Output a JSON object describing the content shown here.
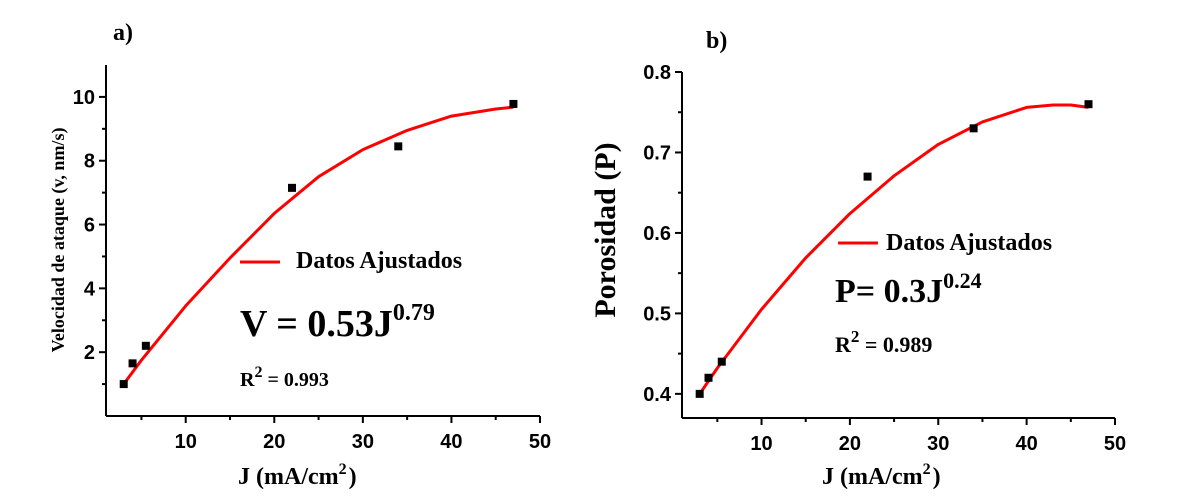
{
  "chart_data": [
    {
      "panel_label": "a)",
      "type": "scatter",
      "xlabel_main": "J (mA/cm",
      "xlabel_sup": "2",
      "xlabel_end": ")",
      "ylabel": "Velocidad de ataque (v, nm/s)",
      "xlim": [
        1,
        50
      ],
      "ylim": [
        0,
        11
      ],
      "xticks": [
        10,
        20,
        30,
        40,
        50
      ],
      "yticks": [
        2,
        4,
        6,
        8,
        10
      ],
      "tick_decimals": 0,
      "points": [
        {
          "x": 3,
          "y": 1.0
        },
        {
          "x": 4,
          "y": 1.65
        },
        {
          "x": 5.5,
          "y": 2.2
        },
        {
          "x": 22,
          "y": 7.15
        },
        {
          "x": 34,
          "y": 8.45
        },
        {
          "x": 47,
          "y": 9.78
        }
      ],
      "fit": {
        "name": "Datos Ajustados",
        "color": "#ff0000",
        "x": [
          3,
          5,
          10,
          15,
          20,
          25,
          30,
          35,
          40,
          45,
          47
        ],
        "y": [
          1.0,
          1.75,
          3.45,
          4.95,
          6.35,
          7.5,
          8.35,
          8.95,
          9.4,
          9.62,
          9.68
        ]
      },
      "equation_main": "V = 0.53J",
      "equation_exp": "0.79",
      "r2_main": "R",
      "r2_sup": "2",
      "r2_value": " = 0.993",
      "marker_color": "#000000"
    },
    {
      "panel_label": "b)",
      "type": "scatter",
      "xlabel_main": "J (mA/cm",
      "xlabel_sup": "2",
      "xlabel_end": ")",
      "ylabel": "Porosidad (P)",
      "xlim": [
        1,
        50
      ],
      "ylim": [
        0.37,
        0.8
      ],
      "xticks": [
        10,
        20,
        30,
        40,
        50
      ],
      "yticks": [
        0.4,
        0.5,
        0.6,
        0.7,
        0.8
      ],
      "tick_decimals": 1,
      "points": [
        {
          "x": 3,
          "y": 0.4
        },
        {
          "x": 4,
          "y": 0.42
        },
        {
          "x": 5.5,
          "y": 0.44
        },
        {
          "x": 22,
          "y": 0.67
        },
        {
          "x": 34,
          "y": 0.73
        },
        {
          "x": 47,
          "y": 0.76
        }
      ],
      "fit": {
        "name": "Datos Ajustados",
        "color": "#ff0000",
        "x": [
          3,
          5,
          10,
          15,
          20,
          25,
          30,
          35,
          40,
          43,
          45,
          47
        ],
        "y": [
          0.4,
          0.432,
          0.505,
          0.569,
          0.624,
          0.671,
          0.71,
          0.738,
          0.756,
          0.759,
          0.759,
          0.756
        ]
      },
      "equation_main": "P= 0.3J",
      "equation_exp": "0.24",
      "r2_main": "R",
      "r2_sup": "2",
      "r2_value": " = 0.989",
      "marker_color": "#000000"
    }
  ]
}
